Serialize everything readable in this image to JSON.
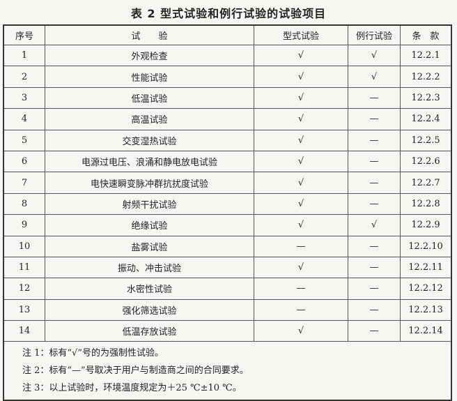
{
  "title": "表 2   型式试验和例行试验的试验项目",
  "headers": [
    "序号",
    "试　　验",
    "型式试验",
    "例行试验",
    "条　款"
  ],
  "rows": [
    [
      "1",
      "外观检查",
      "√",
      "√",
      "12.2.1"
    ],
    [
      "2",
      "性能试验",
      "√",
      "√",
      "12.2.2"
    ],
    [
      "3",
      "低温试验",
      "√",
      "—",
      "12.2.3"
    ],
    [
      "4",
      "高温试验",
      "√",
      "—",
      "12.2.4"
    ],
    [
      "5",
      "交变湿热试验",
      "√",
      "—",
      "12.2.5"
    ],
    [
      "6",
      "电源过电压、浪涌和静电放电试验",
      "√",
      "—",
      "12.2.6"
    ],
    [
      "7",
      "电快速瞬变脉冲群抗扰度试验",
      "√",
      "—",
      "12.2.7"
    ],
    [
      "8",
      "射频干扰试验",
      "√",
      "—",
      "12.2.8"
    ],
    [
      "9",
      "绝缘试验",
      "√",
      "√",
      "12.2.9"
    ],
    [
      "10",
      "盐雾试验",
      "—",
      "—",
      "12.2.10"
    ],
    [
      "11",
      "振动、冲击试验",
      "√",
      "—",
      "12.2.11"
    ],
    [
      "12",
      "水密性试验",
      "—",
      "—",
      "12.2.12"
    ],
    [
      "13",
      "强化筛选试验",
      "—",
      "—",
      "12.2.13"
    ],
    [
      "14",
      "低温存放试验",
      "√",
      "—",
      "12.2.14"
    ]
  ],
  "notes": [
    "注 1：标有“√”号的为强制性试验。",
    "注 2：标有“—”号取决于用户与制造商之间的合同要求。",
    "注 3：以上试验时，环境温度规定为＋25 ℃±10 ℃。"
  ]
}
